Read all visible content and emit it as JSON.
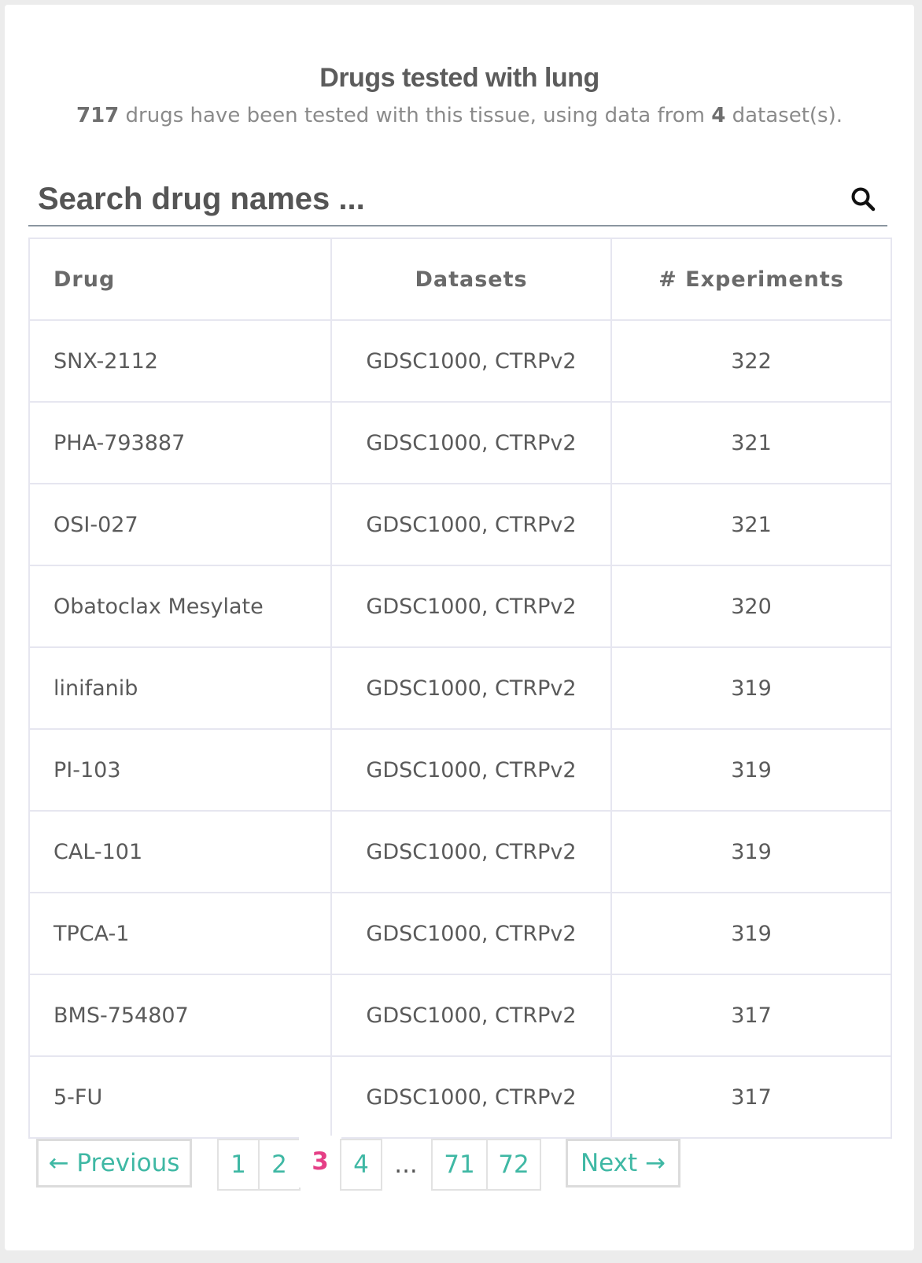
{
  "header": {
    "title": "Drugs tested with lung",
    "subtitle_count": "717",
    "subtitle_middle": " drugs have been tested with this tissue, using data from ",
    "subtitle_datasets": "4",
    "subtitle_end": " dataset(s)."
  },
  "search": {
    "placeholder": "Search drug names ...",
    "icon": "search-icon"
  },
  "table": {
    "headers": [
      "Drug",
      "Datasets",
      "# Experiments"
    ],
    "rows": [
      {
        "drug": "SNX-2112",
        "datasets": "GDSC1000, CTRPv2",
        "experiments": "322"
      },
      {
        "drug": "PHA-793887",
        "datasets": "GDSC1000, CTRPv2",
        "experiments": "321"
      },
      {
        "drug": "OSI-027",
        "datasets": "GDSC1000, CTRPv2",
        "experiments": "321"
      },
      {
        "drug": "Obatoclax Mesylate",
        "datasets": "GDSC1000, CTRPv2",
        "experiments": "320"
      },
      {
        "drug": "linifanib",
        "datasets": "GDSC1000, CTRPv2",
        "experiments": "319"
      },
      {
        "drug": "PI-103",
        "datasets": "GDSC1000, CTRPv2",
        "experiments": "319"
      },
      {
        "drug": "CAL-101",
        "datasets": "GDSC1000, CTRPv2",
        "experiments": "319"
      },
      {
        "drug": "TPCA-1",
        "datasets": "GDSC1000, CTRPv2",
        "experiments": "319"
      },
      {
        "drug": "BMS-754807",
        "datasets": "GDSC1000, CTRPv2",
        "experiments": "317"
      },
      {
        "drug": "5-FU",
        "datasets": "GDSC1000, CTRPv2",
        "experiments": "317"
      }
    ]
  },
  "pagination": {
    "previous_label": "← Previous",
    "next_label": "Next →",
    "pages": [
      "1",
      "2",
      "3",
      "4",
      "71",
      "72"
    ],
    "ellipsis": "...",
    "current": "3"
  },
  "colors": {
    "link": "#3fb8a4",
    "current_page": "#e53f86"
  }
}
